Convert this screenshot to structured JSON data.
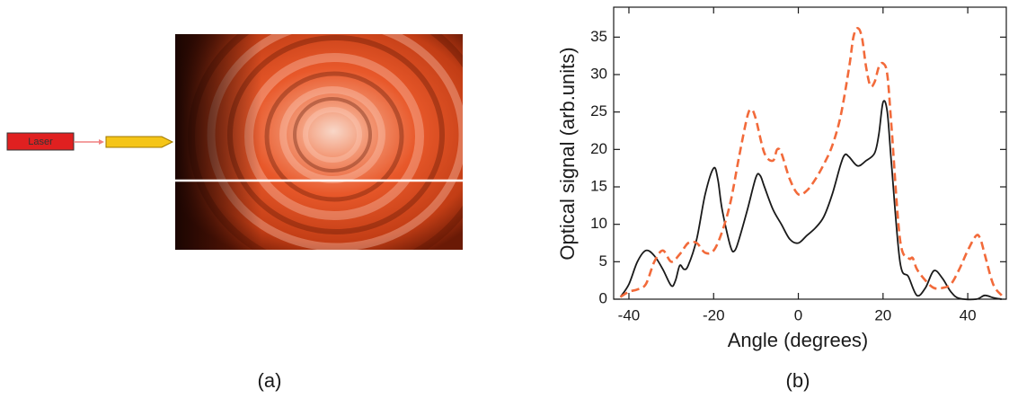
{
  "figure_a": {
    "laser_label": "Laser",
    "panel_label": "(a)"
  },
  "chart_data": {
    "type": "line",
    "panel_label": "(b)",
    "x_label": "Angle (degrees)",
    "y_label": "Optical signal (arb.units)",
    "xlim": [
      -43.6,
      49.1
    ],
    "ylim": [
      0,
      39
    ],
    "xticks": [
      -40,
      -20,
      0,
      20,
      40
    ],
    "yticks": [
      0,
      5,
      10,
      15,
      20,
      25,
      30,
      35
    ],
    "series": [
      {
        "color": "#1a1a1a",
        "dash": "solid",
        "x": [
          -42,
          -40,
          -38,
          -36,
          -34,
          -32,
          -30,
          -29,
          -28,
          -27,
          -26,
          -24,
          -22,
          -20,
          -19,
          -18,
          -16,
          -15,
          -14,
          -12,
          -10,
          -9,
          -8,
          -6,
          -4,
          -2,
          0,
          2,
          4,
          6,
          8,
          10,
          11,
          12,
          14,
          16,
          18,
          19,
          20,
          21,
          22,
          24,
          26,
          28,
          30,
          32,
          34,
          36,
          38,
          42,
          44,
          46,
          48
        ],
        "values": [
          0.3,
          2,
          5,
          6.5,
          5.8,
          4,
          1.8,
          2.5,
          4.5,
          4,
          4.5,
          8,
          14,
          17.5,
          16,
          12,
          7,
          6.5,
          8,
          12,
          16.3,
          16.5,
          15,
          12,
          10,
          8,
          7.5,
          8.5,
          9.5,
          11,
          14,
          18,
          19.3,
          19,
          17.8,
          18.5,
          19.5,
          22,
          26.3,
          25,
          18,
          5,
          3,
          0.5,
          1.5,
          3.8,
          2.8,
          1,
          0.1,
          0,
          0.5,
          0.2,
          0
        ]
      },
      {
        "color": "#f26a3a",
        "dash": "dashed",
        "x": [
          -42,
          -40,
          -38,
          -36,
          -34,
          -32,
          -30,
          -28,
          -26,
          -24,
          -22,
          -20,
          -18,
          -16,
          -14,
          -12,
          -11,
          -10,
          -8,
          -6,
          -5,
          -4,
          -2,
          0,
          2,
          4,
          6,
          8,
          10,
          12,
          13,
          14,
          15,
          16,
          17,
          18,
          19,
          20,
          21,
          22,
          24,
          26,
          27,
          28,
          30,
          32,
          34,
          36,
          38,
          40,
          42,
          43,
          44,
          46,
          48
        ],
        "values": [
          0.3,
          1,
          1.3,
          2,
          5,
          6.5,
          5,
          6,
          7.5,
          7.5,
          6.2,
          6.5,
          9,
          13,
          19,
          24.5,
          25.3,
          24,
          19.5,
          18.5,
          20,
          19.5,
          16,
          14,
          14.5,
          16,
          18,
          20.5,
          24.5,
          31,
          35,
          36.2,
          35,
          31,
          28.5,
          29,
          31,
          31.5,
          30,
          23,
          8,
          5.5,
          5.5,
          4,
          2.5,
          1.5,
          1.5,
          2,
          4,
          6.5,
          8.5,
          8,
          6,
          2,
          0.5
        ]
      }
    ]
  }
}
